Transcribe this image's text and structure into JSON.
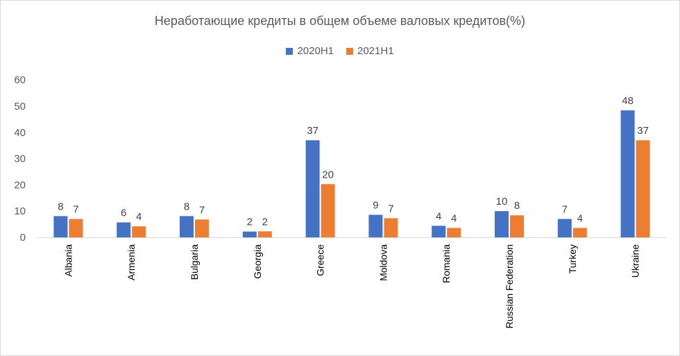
{
  "chart_data": {
    "type": "bar",
    "title": "Неработающие кредиты в общем объеме валовых кредитов(%)",
    "categories": [
      "Albania",
      "Armenia",
      "Bulgaria",
      "Georgia",
      "Greece",
      "Moldova",
      "Romania",
      "Russian Federation",
      "Turkey",
      "Ukraine"
    ],
    "series": [
      {
        "name": "2020H1",
        "color": "#4472C4",
        "values": [
          8.1,
          5.7,
          8.1,
          2.2,
          37.0,
          8.6,
          4.4,
          10.0,
          7.0,
          48.4
        ],
        "labels": [
          "8",
          "6",
          "8",
          "2",
          "37",
          "9",
          "4",
          "10",
          "7",
          "48"
        ]
      },
      {
        "name": "2021H1",
        "color": "#ED7D31",
        "values": [
          7.0,
          4.2,
          6.8,
          2.3,
          20.3,
          7.3,
          3.6,
          8.4,
          3.6,
          37.0
        ],
        "labels": [
          "7",
          "4",
          "7",
          "2",
          "20",
          "7",
          "4",
          "8",
          "4",
          "37"
        ]
      }
    ],
    "ylim": [
      0,
      60
    ],
    "yticks": [
      0,
      10,
      20,
      30,
      40,
      50,
      60
    ],
    "xlabel": "",
    "ylabel": "",
    "grid": false,
    "legend_position": "top"
  }
}
